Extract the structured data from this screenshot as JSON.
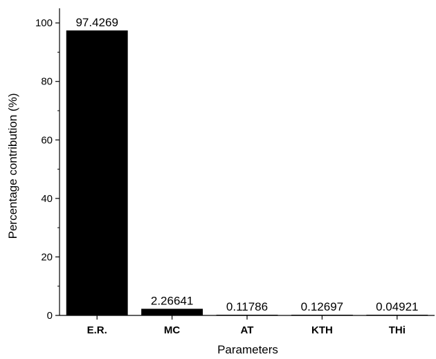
{
  "chart_data": {
    "type": "bar",
    "title": "",
    "xlabel": "Parameters",
    "ylabel": "Percentage contribution (%)",
    "categories": [
      "E.R.",
      "MC",
      "AT",
      "KTH",
      "THi"
    ],
    "values": [
      97.4269,
      2.26641,
      0.11786,
      0.12697,
      0.04921
    ],
    "data_labels": [
      "97.4269",
      "2.26641",
      "0.11786",
      "0.12697",
      "0.04921"
    ],
    "ylim": [
      0,
      105
    ],
    "yticks": [
      0,
      20,
      40,
      60,
      80,
      100
    ],
    "grid": false,
    "bar_color": "#000000"
  }
}
